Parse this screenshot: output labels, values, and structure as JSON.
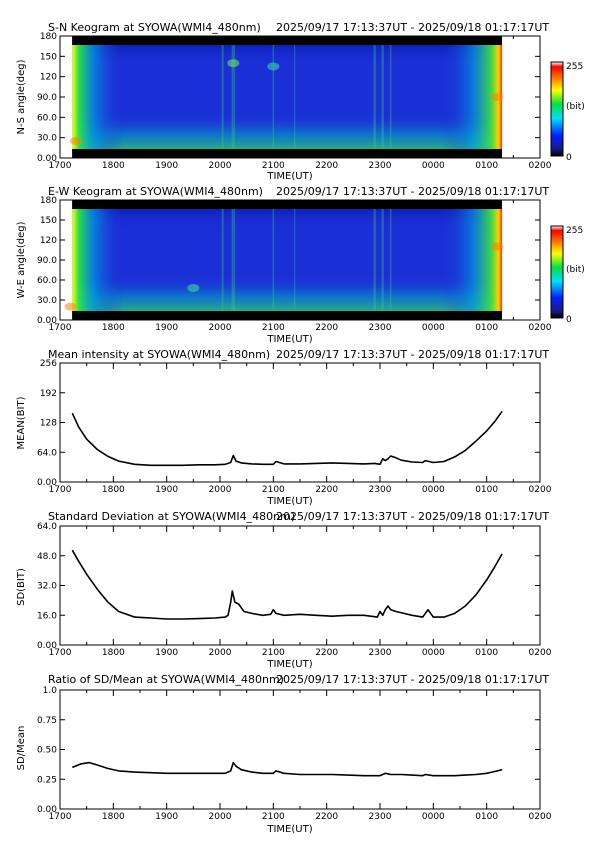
{
  "time_range": "2025/09/17 17:13:37UT - 2025/09/18 01:17:17UT",
  "x_label": "TIME(UT)",
  "x_ticks": [
    "1700",
    "1800",
    "1900",
    "2000",
    "2100",
    "2200",
    "2300",
    "0000",
    "0100",
    "0200"
  ],
  "colors": {
    "background": "#ffffff",
    "keogram_base": "#1b2fd6",
    "line": "#000000"
  },
  "chart_data": [
    {
      "type": "heatmap",
      "title": "S-N Keogram at SYOWA(WMI4_480nm)",
      "xlabel": "TIME(UT)",
      "ylabel": "N-S angle(deg)",
      "xlim": [
        17.0,
        26.0
      ],
      "ylim": [
        0,
        180
      ],
      "y_ticks": [
        "0.00",
        "30.0",
        "60.0",
        "90.0",
        "120",
        "150",
        "180"
      ],
      "colorbar": {
        "min": 0,
        "max": 255,
        "label": "(bit)",
        "min_label": "0",
        "max_label": "255"
      },
      "data_range": [
        17.227,
        25.288
      ],
      "features": [
        {
          "time": 17.3,
          "angle": 25,
          "level": 230
        },
        {
          "time": 20.25,
          "angle": 140,
          "level": 170
        },
        {
          "time": 21.0,
          "angle": 135,
          "level": 150
        },
        {
          "time": 25.2,
          "angle": 90,
          "level": 240
        }
      ]
    },
    {
      "type": "heatmap",
      "title": "E-W Keogram at SYOWA(WMI4_480nm)",
      "xlabel": "TIME(UT)",
      "ylabel": "W-E angle(deg)",
      "xlim": [
        17.0,
        26.0
      ],
      "ylim": [
        0,
        180
      ],
      "y_ticks": [
        "0.00",
        "30.0",
        "60.0",
        "90.0",
        "120",
        "150",
        "180"
      ],
      "colorbar": {
        "min": 0,
        "max": 255,
        "label": "(bit)",
        "min_label": "0",
        "max_label": "255"
      },
      "data_range": [
        17.227,
        25.288
      ],
      "features": [
        {
          "time": 17.2,
          "angle": 20,
          "level": 250
        },
        {
          "time": 19.5,
          "angle": 48,
          "level": 150
        },
        {
          "time": 25.2,
          "angle": 110,
          "level": 245
        }
      ]
    },
    {
      "type": "line",
      "title": "Mean intensity at SYOWA(WMI4_480nm)",
      "xlabel": "TIME(UT)",
      "ylabel": "MEAN(BIT)",
      "xlim": [
        17.0,
        26.0
      ],
      "ylim": [
        0,
        256
      ],
      "y_ticks": [
        "0.00",
        "64.0",
        "128",
        "192",
        "256"
      ],
      "x": [
        17.23,
        17.35,
        17.5,
        17.7,
        17.9,
        18.1,
        18.4,
        18.7,
        19.0,
        19.3,
        19.6,
        19.9,
        20.1,
        20.2,
        20.25,
        20.3,
        20.4,
        20.6,
        20.8,
        21.0,
        21.05,
        21.2,
        21.5,
        21.8,
        22.1,
        22.4,
        22.7,
        22.9,
        23.0,
        23.05,
        23.1,
        23.15,
        23.2,
        23.3,
        23.4,
        23.6,
        23.8,
        23.85,
        24.0,
        24.2,
        24.4,
        24.6,
        24.8,
        25.0,
        25.15,
        25.29
      ],
      "y": [
        148,
        118,
        92,
        70,
        55,
        45,
        38,
        36,
        36,
        36,
        37,
        37,
        38,
        42,
        57,
        45,
        41,
        39,
        38,
        38,
        44,
        39,
        39,
        40,
        41,
        40,
        39,
        40,
        38,
        50,
        46,
        50,
        56,
        52,
        47,
        43,
        42,
        46,
        42,
        44,
        54,
        68,
        88,
        110,
        130,
        152
      ]
    },
    {
      "type": "line",
      "title": "Standard Deviation at SYOWA(WMI4_480nm)",
      "xlabel": "TIME(UT)",
      "ylabel": "SD(BIT)",
      "xlim": [
        17.0,
        26.0
      ],
      "ylim": [
        0,
        64
      ],
      "y_ticks": [
        "0.00",
        "16.0",
        "32.0",
        "48.0",
        "64.0"
      ],
      "x": [
        17.23,
        17.35,
        17.5,
        17.7,
        17.9,
        18.1,
        18.4,
        18.7,
        19.0,
        19.3,
        19.6,
        19.9,
        20.1,
        20.15,
        20.2,
        20.23,
        20.28,
        20.35,
        20.45,
        20.6,
        20.8,
        20.95,
        21.0,
        21.05,
        21.2,
        21.5,
        21.8,
        22.1,
        22.4,
        22.7,
        22.95,
        23.0,
        23.05,
        23.1,
        23.15,
        23.2,
        23.3,
        23.45,
        23.6,
        23.8,
        23.85,
        23.9,
        24.0,
        24.2,
        24.4,
        24.6,
        24.8,
        25.0,
        25.15,
        25.29
      ],
      "y": [
        51,
        45,
        38,
        30,
        23,
        18,
        15,
        14.5,
        14,
        14,
        14.2,
        14.5,
        15,
        16,
        23,
        29,
        23,
        22,
        18,
        17,
        16,
        16.5,
        19,
        17,
        16,
        16.5,
        16,
        15.5,
        16,
        16,
        15,
        18,
        16,
        19,
        21,
        19,
        18,
        17,
        16,
        15,
        17,
        19,
        15,
        15,
        17,
        21,
        27,
        35,
        42,
        49
      ]
    },
    {
      "type": "line",
      "title": "Ratio of SD/Mean at SYOWA(WMI4_480nm)",
      "xlabel": "TIME(UT)",
      "ylabel": "SD/Mean",
      "xlim": [
        17.0,
        26.0
      ],
      "ylim": [
        0,
        1.0
      ],
      "y_ticks": [
        "0.00",
        "0.25",
        "0.50",
        "0.75",
        "1.0"
      ],
      "x": [
        17.23,
        17.4,
        17.55,
        17.7,
        17.9,
        18.1,
        18.4,
        18.7,
        19.0,
        19.3,
        19.6,
        19.9,
        20.1,
        20.2,
        20.25,
        20.3,
        20.4,
        20.6,
        20.8,
        21.0,
        21.05,
        21.2,
        21.5,
        21.8,
        22.1,
        22.4,
        22.7,
        23.0,
        23.1,
        23.2,
        23.4,
        23.6,
        23.8,
        23.85,
        24.0,
        24.2,
        24.4,
        24.6,
        24.8,
        25.0,
        25.15,
        25.29
      ],
      "y": [
        0.35,
        0.38,
        0.39,
        0.37,
        0.34,
        0.32,
        0.31,
        0.305,
        0.3,
        0.3,
        0.3,
        0.3,
        0.3,
        0.32,
        0.39,
        0.36,
        0.33,
        0.31,
        0.3,
        0.3,
        0.32,
        0.3,
        0.29,
        0.29,
        0.29,
        0.285,
        0.28,
        0.28,
        0.3,
        0.29,
        0.29,
        0.285,
        0.28,
        0.29,
        0.28,
        0.28,
        0.28,
        0.285,
        0.29,
        0.3,
        0.315,
        0.33
      ]
    }
  ]
}
